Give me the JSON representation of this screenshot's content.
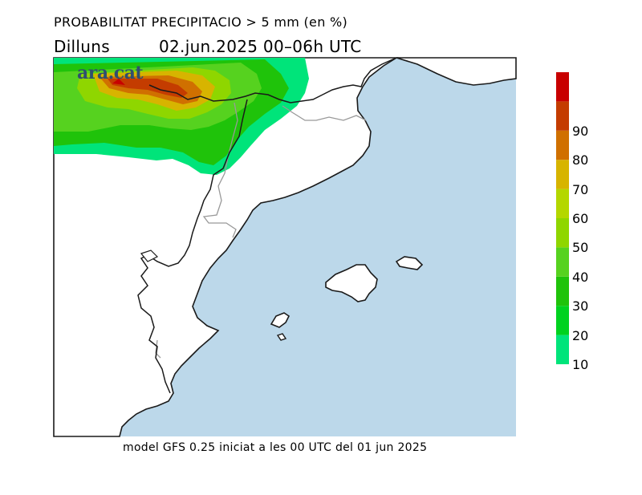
{
  "header": {
    "title": "PROBABILITAT PRECIPITACIO > 5 mm (en %)",
    "day": "Dilluns",
    "date_time": "02.jun.2025 00–06h UTC"
  },
  "logo": {
    "text": "ara.cat"
  },
  "footer": {
    "text": "model GFS 0.25 iniciat a les 00 UTC del 01 jun 2025"
  },
  "colorbar": {
    "levels": [
      {
        "value": "10",
        "color": "#00e47a"
      },
      {
        "value": "20",
        "color": "#00d21f"
      },
      {
        "value": "30",
        "color": "#1fc30a"
      },
      {
        "value": "40",
        "color": "#56d21f"
      },
      {
        "value": "50",
        "color": "#8fd600"
      },
      {
        "value": "60",
        "color": "#b4d700"
      },
      {
        "value": "70",
        "color": "#d7b400"
      },
      {
        "value": "80",
        "color": "#d07000"
      },
      {
        "value": "90",
        "color": "#c43c00"
      },
      {
        "value": "",
        "color": "#c80000"
      }
    ]
  },
  "colors": {
    "sea": "#bcd8ea",
    "land": "#ffffff",
    "coast": "#1a1a1a",
    "border": "#999999"
  }
}
